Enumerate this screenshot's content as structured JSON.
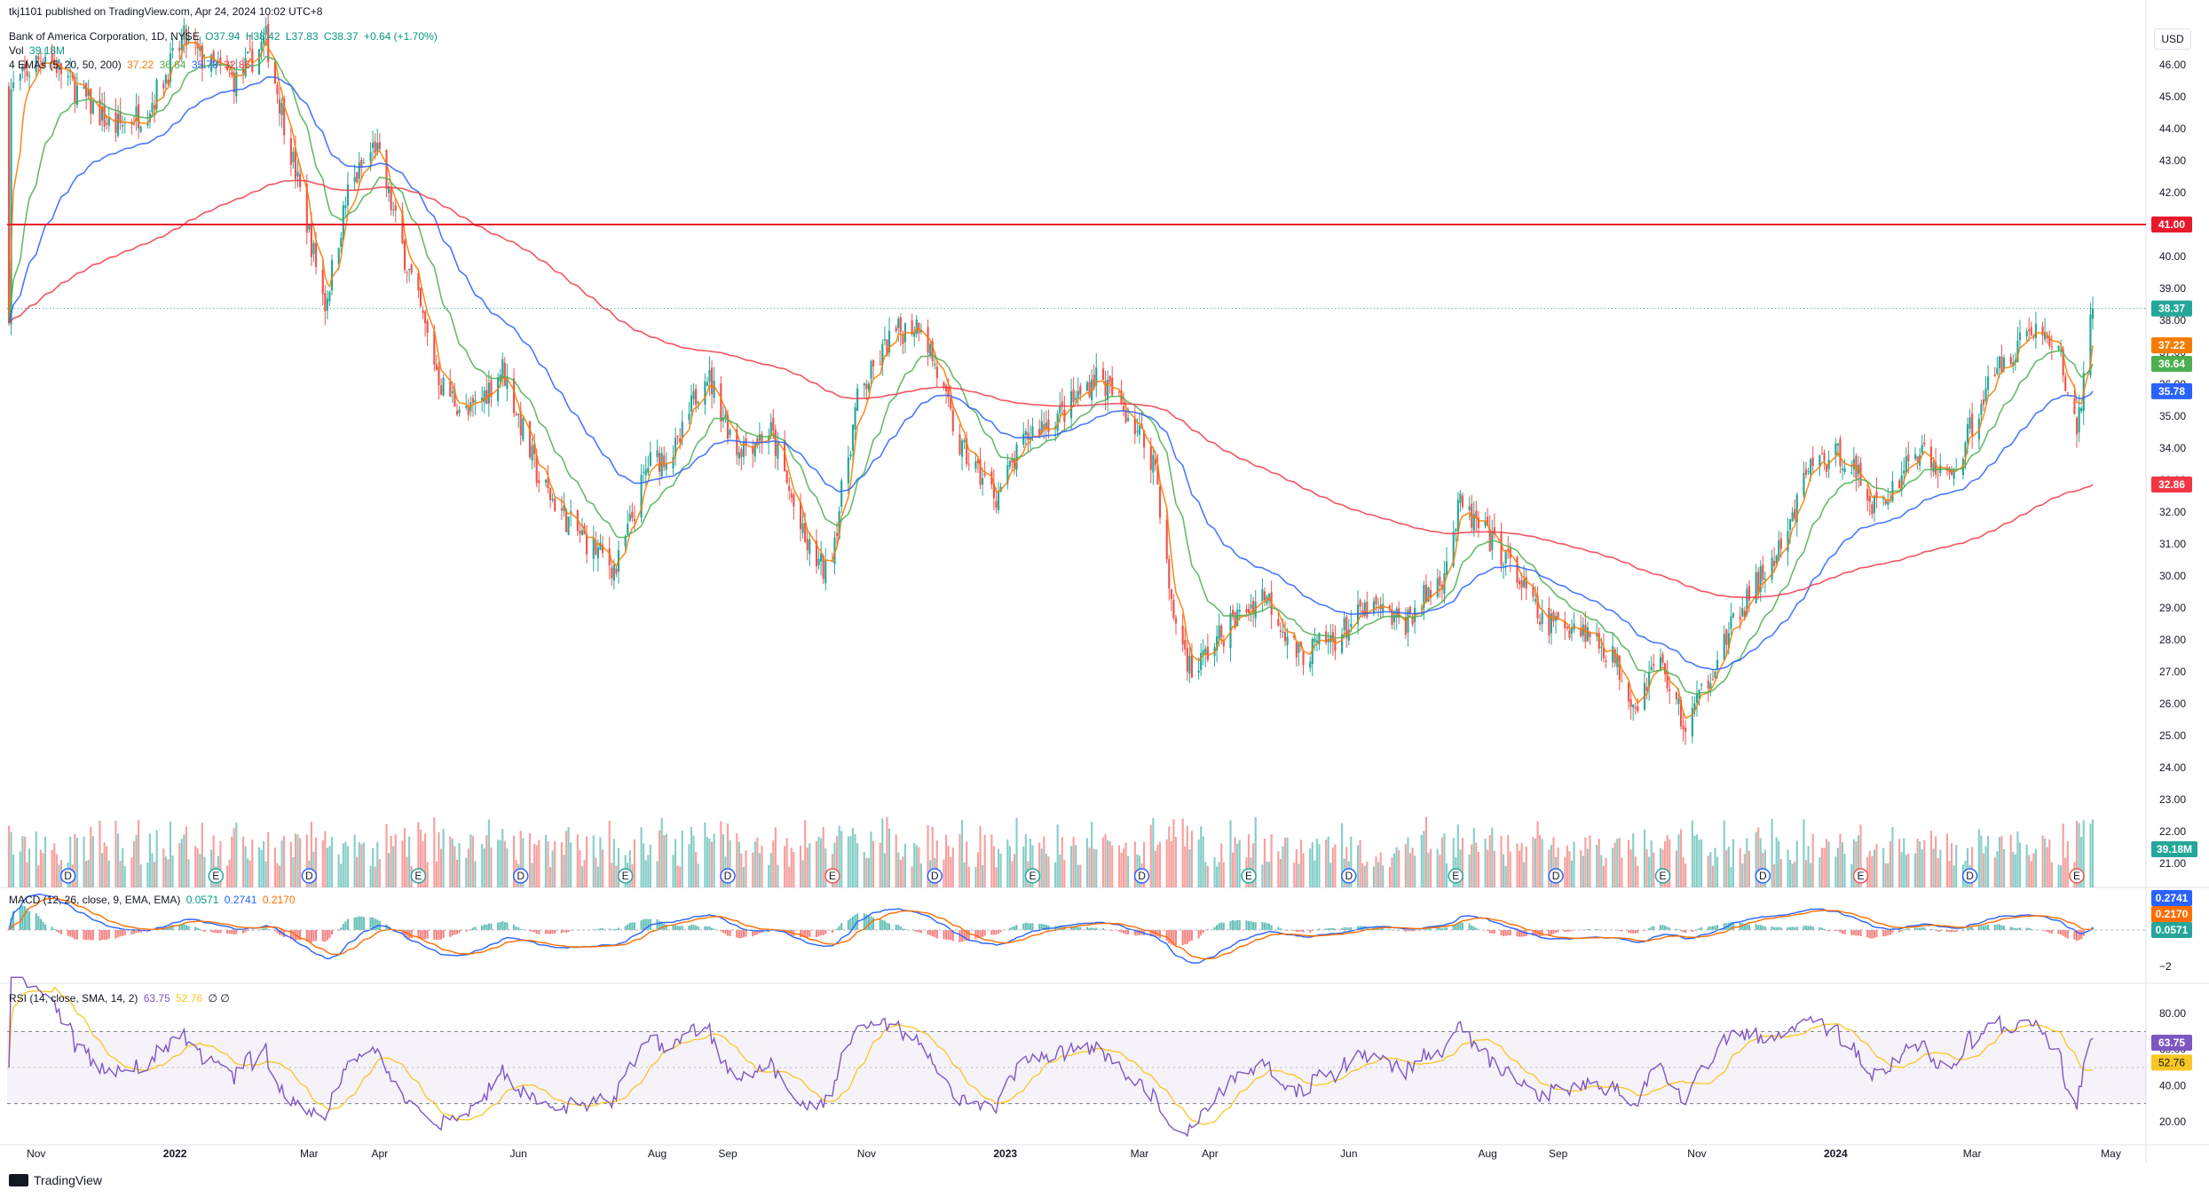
{
  "header": {
    "publisher": "tkj1101 published on TradingView.com, Apr 24, 2024 10:02 UTC+8",
    "symbol": "Bank of America Corporation, 1D, NYSE",
    "ohlc": [
      "O37.94",
      "H38.42",
      "L37.83",
      "C38.37",
      "+0.64 (+1.70%)"
    ],
    "vol_label": "Vol",
    "vol_value": "39.18M",
    "ema_label": "4 EMAs (5, 20, 50, 200)",
    "ema_values": [
      "37.22",
      "36.64",
      "35.78",
      "32.86"
    ]
  },
  "currency": "USD",
  "footer_brand": "TradingView",
  "colors": {
    "up": "#26a69a",
    "down": "#ef5350",
    "ema5": "#f57c00",
    "ema20": "#4caf50",
    "ema50": "#2962ff",
    "ema200": "#f23645",
    "hline": "#e8192c",
    "macd": "#2962ff",
    "signal": "#ff6d00",
    "rsi": "#7e57c2",
    "rsi_ma": "#f9c623",
    "rsi_band": "#7e57c2"
  },
  "chart_data": [
    {
      "type": "candlestick",
      "title": "Bank of America Corporation, 1D, NYSE",
      "ylim": [
        20,
        47
      ],
      "y_ticks": [
        "46.00",
        "45.00",
        "44.00",
        "43.00",
        "42.00",
        "41.00",
        "40.00",
        "39.00",
        "38.00",
        "37.00",
        "36.00",
        "35.00",
        "34.00",
        "33.00",
        "32.00",
        "31.00",
        "30.00",
        "29.00",
        "28.00",
        "27.00",
        "26.00",
        "25.00",
        "24.00",
        "23.00",
        "22.00",
        "21.00"
      ],
      "x_ticks": [
        "Nov",
        "2022",
        "Mar",
        "Apr",
        "Jun",
        "Aug",
        "Sep",
        "Nov",
        "2023",
        "Mar",
        "Apr",
        "Jun",
        "Aug",
        "Sep",
        "Nov",
        "2024",
        "Mar",
        "May"
      ],
      "close_anchors": [
        [
          "2021-10-21",
          45.2
        ],
        [
          "2021-11-05",
          46.4
        ],
        [
          "2021-11-20",
          45.1
        ],
        [
          "2021-12-05",
          44.0
        ],
        [
          "2021-12-20",
          44.6
        ],
        [
          "2022-01-05",
          46.8
        ],
        [
          "2022-01-15",
          46.0
        ],
        [
          "2022-01-28",
          45.5
        ],
        [
          "2022-02-10",
          46.8
        ],
        [
          "2022-02-25",
          42.0
        ],
        [
          "2022-03-08",
          38.5
        ],
        [
          "2022-03-18",
          42.0
        ],
        [
          "2022-03-30",
          43.5
        ],
        [
          "2022-04-12",
          40.0
        ],
        [
          "2022-04-28",
          36.0
        ],
        [
          "2022-05-10",
          35.0
        ],
        [
          "2022-05-25",
          36.5
        ],
        [
          "2022-06-10",
          33.0
        ],
        [
          "2022-06-25",
          31.5
        ],
        [
          "2022-07-14",
          30.2
        ],
        [
          "2022-07-28",
          33.5
        ],
        [
          "2022-08-10",
          34.0
        ],
        [
          "2022-08-22",
          36.5
        ],
        [
          "2022-09-05",
          34.0
        ],
        [
          "2022-09-20",
          34.5
        ],
        [
          "2022-10-05",
          31.0
        ],
        [
          "2022-10-15",
          30.0
        ],
        [
          "2022-10-28",
          35.5
        ],
        [
          "2022-11-12",
          37.5
        ],
        [
          "2022-11-25",
          38.0
        ],
        [
          "2022-12-12",
          34.0
        ],
        [
          "2022-12-28",
          32.5
        ],
        [
          "2023-01-12",
          34.5
        ],
        [
          "2023-01-28",
          35.2
        ],
        [
          "2023-02-10",
          36.3
        ],
        [
          "2023-02-25",
          35.0
        ],
        [
          "2023-03-08",
          33.5
        ],
        [
          "2023-03-15",
          29.0
        ],
        [
          "2023-03-24",
          27.0
        ],
        [
          "2023-04-10",
          28.5
        ],
        [
          "2023-04-25",
          29.5
        ],
        [
          "2023-05-10",
          27.5
        ],
        [
          "2023-05-25",
          28.0
        ],
        [
          "2023-06-10",
          29.0
        ],
        [
          "2023-06-25",
          28.5
        ],
        [
          "2023-07-12",
          30.0
        ],
        [
          "2023-07-20",
          32.2
        ],
        [
          "2023-07-28",
          31.5
        ],
        [
          "2023-08-10",
          30.5
        ],
        [
          "2023-08-25",
          28.5
        ],
        [
          "2023-09-10",
          28.5
        ],
        [
          "2023-09-25",
          27.5
        ],
        [
          "2023-10-05",
          26.0
        ],
        [
          "2023-10-15",
          27.5
        ],
        [
          "2023-10-27",
          25.2
        ],
        [
          "2023-11-10",
          27.5
        ],
        [
          "2023-11-25",
          29.5
        ],
        [
          "2023-12-10",
          31.0
        ],
        [
          "2023-12-20",
          33.5
        ],
        [
          "2024-01-05",
          33.8
        ],
        [
          "2024-01-20",
          32.0
        ],
        [
          "2024-02-05",
          34.0
        ],
        [
          "2024-02-20",
          33.0
        ],
        [
          "2024-03-05",
          35.5
        ],
        [
          "2024-03-15",
          36.8
        ],
        [
          "2024-03-28",
          37.8
        ],
        [
          "2024-04-08",
          37.0
        ],
        [
          "2024-04-16",
          34.5
        ],
        [
          "2024-04-23",
          38.37
        ]
      ],
      "last_close": 38.37,
      "series": [
        {
          "name": "EMA 5",
          "last": 37.22
        },
        {
          "name": "EMA 20",
          "last": 36.64
        },
        {
          "name": "EMA 50",
          "last": 35.78
        },
        {
          "name": "EMA 200",
          "last": 32.86
        }
      ],
      "horizontal_line": 41.0,
      "price_labels": [
        "41.00",
        "38.37",
        "37.22",
        "36.64",
        "35.78",
        "32.86"
      ],
      "event_markers": [
        {
          "date": "2021-11-15",
          "label": "D"
        },
        {
          "date": "2022-01-19",
          "label": "E"
        },
        {
          "date": "2022-03-01",
          "label": "D"
        },
        {
          "date": "2022-04-18",
          "label": "E"
        },
        {
          "date": "2022-06-02",
          "label": "D"
        },
        {
          "date": "2022-07-18",
          "label": "E"
        },
        {
          "date": "2022-09-01",
          "label": "D"
        },
        {
          "date": "2022-10-17",
          "label": "E"
        },
        {
          "date": "2022-12-01",
          "label": "D"
        },
        {
          "date": "2023-01-13",
          "label": "E"
        },
        {
          "date": "2023-03-02",
          "label": "D"
        },
        {
          "date": "2023-04-18",
          "label": "E"
        },
        {
          "date": "2023-06-01",
          "label": "D"
        },
        {
          "date": "2023-07-18",
          "label": "E"
        },
        {
          "date": "2023-08-31",
          "label": "D"
        },
        {
          "date": "2023-10-17",
          "label": "E"
        },
        {
          "date": "2023-11-30",
          "label": "D"
        },
        {
          "date": "2024-01-12",
          "label": "E"
        },
        {
          "date": "2024-02-29",
          "label": "D"
        },
        {
          "date": "2024-04-16",
          "label": "E"
        }
      ]
    },
    {
      "type": "bar",
      "title": "Vol",
      "last_value": "39.18M"
    },
    {
      "type": "line",
      "title": "MACD (12, 26, close, 9, EMA, EMA)",
      "values": {
        "histogram": "0.0571",
        "macd": "0.2741",
        "signal": "0.2170"
      },
      "y_ticks": [
        "−2"
      ],
      "price_labels": [
        "0.2741",
        "0.2170",
        "0.0571"
      ]
    },
    {
      "type": "line",
      "title": "RSI (14, close, SMA, 14, 2)",
      "values": {
        "rsi": "63.75",
        "rsi_ma": "52.76",
        "extra": "∅ ∅"
      },
      "ylim": [
        15,
        85
      ],
      "y_ticks": [
        "80.00",
        "60.00",
        "40.00",
        "20.00"
      ],
      "band": [
        30,
        70
      ],
      "price_labels": [
        "63.75",
        "52.76"
      ]
    }
  ]
}
